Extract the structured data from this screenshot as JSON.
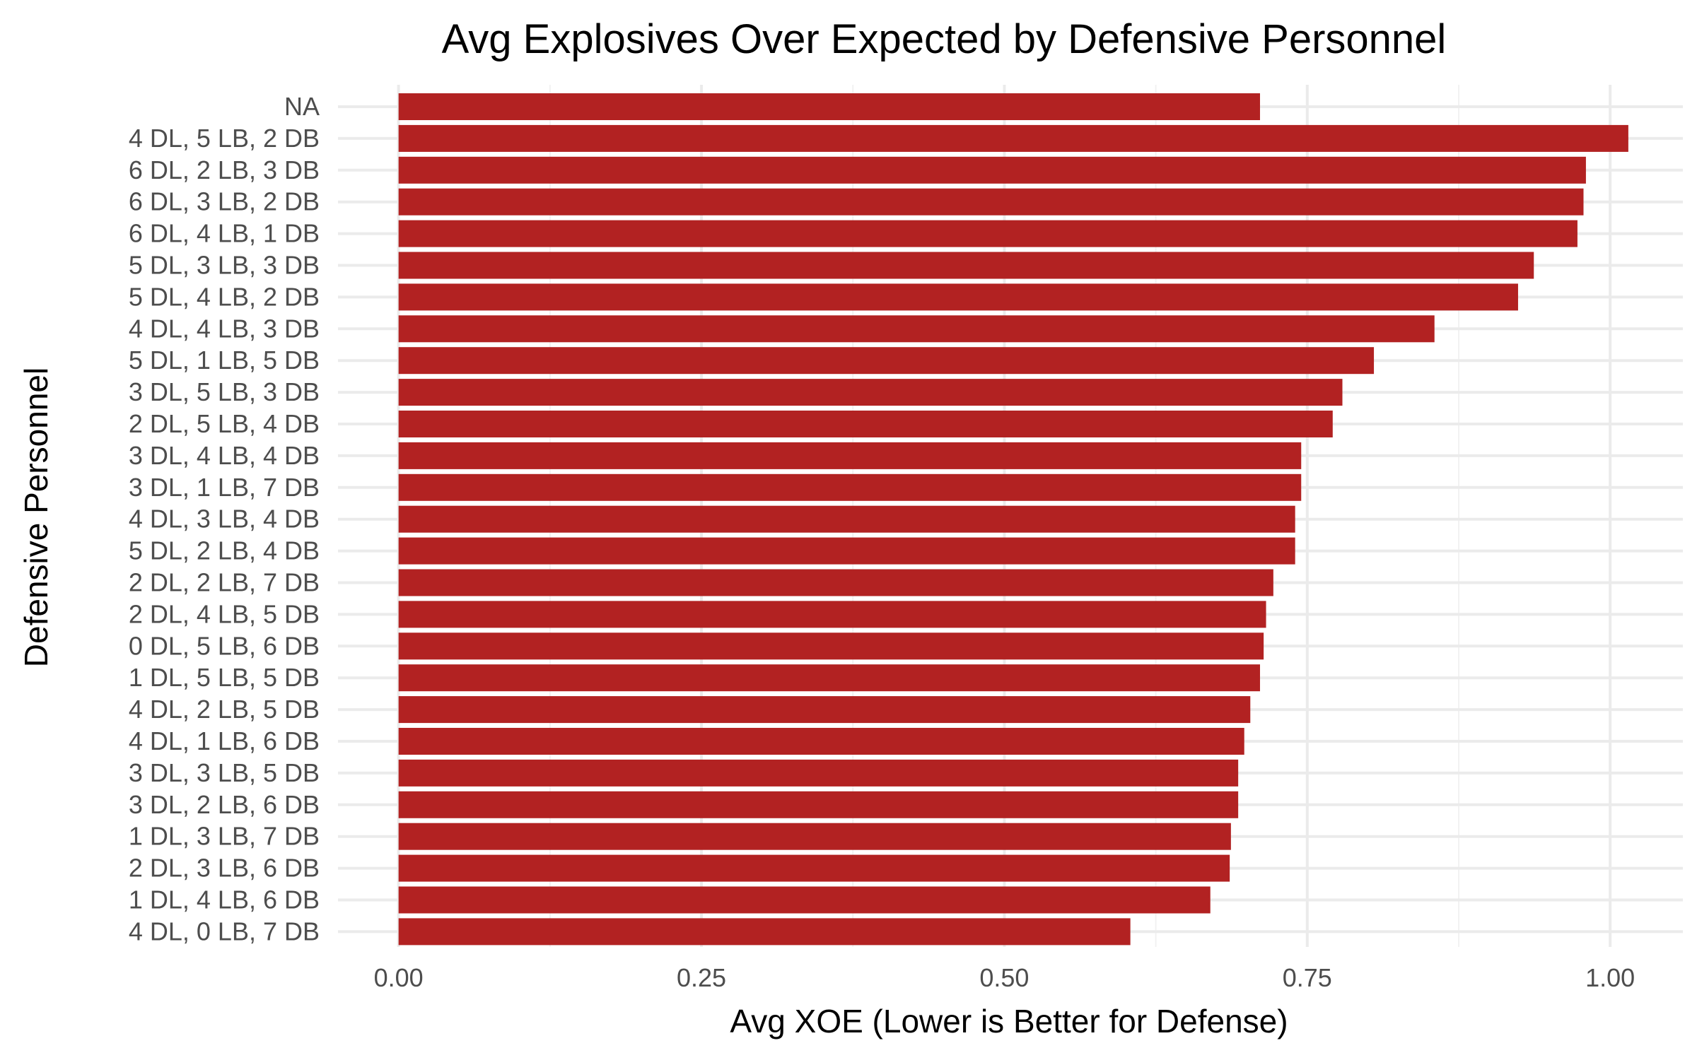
{
  "chart_data": {
    "type": "bar",
    "orientation": "horizontal",
    "title": "Avg Explosives Over Expected by Defensive Personnel",
    "xlabel": "Avg XOE (Lower is Better for Defense)",
    "ylabel": "Defensive Personnel",
    "xlim": [
      -0.05,
      1.06
    ],
    "x_ticks": [
      0.0,
      0.25,
      0.5,
      0.75,
      1.0
    ],
    "x_tick_labels": [
      "0.00",
      "0.25",
      "0.50",
      "0.75",
      "1.00"
    ],
    "grid": true,
    "legend": "none",
    "bar_color": "#b22222",
    "categories": [
      "NA",
      "4 DL, 5 LB, 2 DB",
      "6 DL, 2 LB, 3 DB",
      "6 DL, 3 LB, 2 DB",
      "6 DL, 4 LB, 1 DB",
      "5 DL, 3 LB, 3 DB",
      "5 DL, 4 LB, 2 DB",
      "4 DL, 4 LB, 3 DB",
      "5 DL, 1 LB, 5 DB",
      "3 DL, 5 LB, 3 DB",
      "2 DL, 5 LB, 4 DB",
      "3 DL, 4 LB, 4 DB",
      "3 DL, 1 LB, 7 DB",
      "4 DL, 3 LB, 4 DB",
      "5 DL, 2 LB, 4 DB",
      "2 DL, 2 LB, 7 DB",
      "2 DL, 4 LB, 5 DB",
      "0 DL, 5 LB, 6 DB",
      "1 DL, 5 LB, 5 DB",
      "4 DL, 2 LB, 5 DB",
      "4 DL, 1 LB, 6 DB",
      "3 DL, 3 LB, 5 DB",
      "3 DL, 2 LB, 6 DB",
      "1 DL, 3 LB, 7 DB",
      "2 DL, 3 LB, 6 DB",
      "1 DL, 4 LB, 6 DB",
      "4 DL, 0 LB, 7 DB"
    ],
    "values": [
      0.711,
      1.015,
      0.98,
      0.978,
      0.973,
      0.937,
      0.924,
      0.855,
      0.805,
      0.779,
      0.771,
      0.745,
      0.745,
      0.74,
      0.74,
      0.722,
      0.716,
      0.714,
      0.711,
      0.703,
      0.698,
      0.693,
      0.693,
      0.687,
      0.686,
      0.67,
      0.604
    ]
  }
}
